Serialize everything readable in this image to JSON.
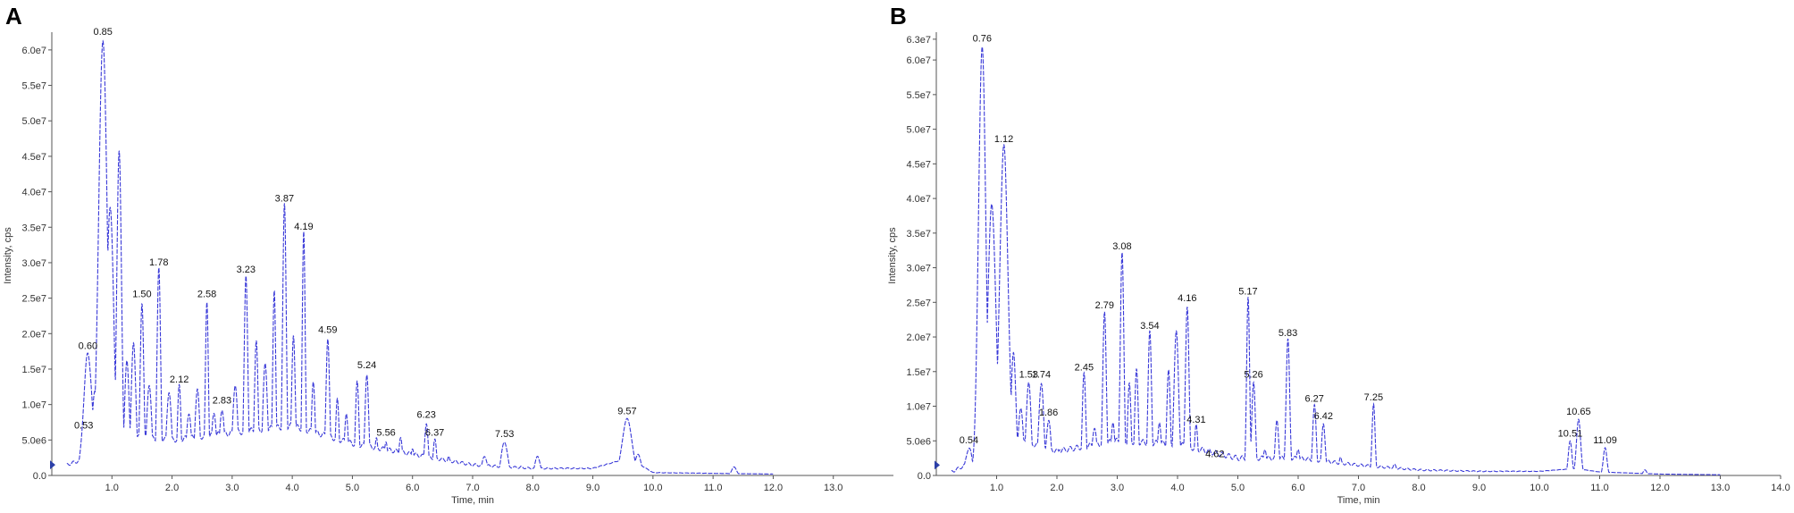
{
  "colors": {
    "trace": "#3a3ad8",
    "axis": "#555555",
    "text": "#111111",
    "marker": "#2b3fa8"
  },
  "chart_data": [
    {
      "type": "line",
      "panel": "A",
      "xlabel": "Time, min",
      "ylabel": "Intensity, cps",
      "xlim": [
        0,
        14.0
      ],
      "ylim": [
        0,
        62000000.0
      ],
      "xticks": [
        1.0,
        2.0,
        3.0,
        4.0,
        5.0,
        6.0,
        7.0,
        8.0,
        9.0,
        10.0,
        11.0,
        12.0,
        13.0
      ],
      "xtick_labels": [
        "1.0",
        "2.0",
        "3.0",
        "4.0",
        "5.0",
        "6.0",
        "7.0",
        "8.0",
        "9.0",
        "10.0",
        "11.0",
        "12.0",
        "13.0"
      ],
      "yticks": [
        0,
        5000000.0,
        10000000.0,
        15000000.0,
        20000000.0,
        25000000.0,
        30000000.0,
        35000000.0,
        40000000.0,
        45000000.0,
        50000000.0,
        55000000.0,
        60000000.0
      ],
      "ytick_labels": [
        "0.0",
        "5.0e6",
        "1.0e7",
        "1.5e7",
        "2.0e7",
        "2.5e7",
        "3.0e7",
        "3.5e7",
        "4.0e7",
        "4.5e7",
        "5.0e7",
        "5.5e7",
        "6.0e7"
      ],
      "baseline": [
        [
          0.25,
          1500000.0
        ],
        [
          0.6,
          2500000.0
        ],
        [
          0.9,
          5000000.0
        ],
        [
          1.4,
          5500000.0
        ],
        [
          2.0,
          5000000.0
        ],
        [
          3.0,
          6000000.0
        ],
        [
          4.0,
          7000000.0
        ],
        [
          5.0,
          4500000.0
        ],
        [
          6.0,
          3000000.0
        ],
        [
          7.0,
          1500000.0
        ],
        [
          8.0,
          1000000.0
        ],
        [
          9.0,
          1000000.0
        ],
        [
          9.6,
          2500000.0
        ],
        [
          10.0,
          400000.0
        ],
        [
          11.0,
          300000.0
        ],
        [
          12.0,
          200000.0
        ]
      ],
      "peaks": [
        [
          0.53,
          6000000.0,
          0.05
        ],
        [
          0.6,
          17200000.0,
          0.07
        ],
        [
          0.72,
          12000000.0,
          0.05
        ],
        [
          0.85,
          61500000.0,
          0.07
        ],
        [
          0.97,
          38000000.0,
          0.06
        ],
        [
          1.12,
          45500000.0,
          0.04
        ],
        [
          1.25,
          16000000.0,
          0.04
        ],
        [
          1.36,
          18500000.0,
          0.04
        ],
        [
          1.5,
          24500000.0,
          0.03
        ],
        [
          1.62,
          13000000.0,
          0.04
        ],
        [
          1.78,
          29000000.0,
          0.03
        ],
        [
          1.95,
          12000000.0,
          0.04
        ],
        [
          2.12,
          12500000.0,
          0.03
        ],
        [
          2.28,
          9000000.0,
          0.04
        ],
        [
          2.42,
          12000000.0,
          0.04
        ],
        [
          2.58,
          24500000.0,
          0.025
        ],
        [
          2.7,
          9000000.0,
          0.04
        ],
        [
          2.83,
          9500000.0,
          0.04
        ],
        [
          3.05,
          13000000.0,
          0.04
        ],
        [
          3.23,
          28000000.0,
          0.03
        ],
        [
          3.4,
          19000000.0,
          0.03
        ],
        [
          3.55,
          15500000.0,
          0.04
        ],
        [
          3.7,
          26500000.0,
          0.025
        ],
        [
          3.87,
          38000000.0,
          0.03
        ],
        [
          4.02,
          20000000.0,
          0.03
        ],
        [
          4.19,
          34000000.0,
          0.025
        ],
        [
          4.35,
          13500000.0,
          0.03
        ],
        [
          4.59,
          19500000.0,
          0.03
        ],
        [
          4.75,
          10500000.0,
          0.03
        ],
        [
          4.9,
          9000000.0,
          0.03
        ],
        [
          5.08,
          13000000.0,
          0.03
        ],
        [
          5.24,
          14500000.0,
          0.03
        ],
        [
          5.4,
          5000000.0,
          0.03
        ],
        [
          5.56,
          5000000.0,
          0.03
        ],
        [
          5.8,
          5500000.0,
          0.03
        ],
        [
          6.0,
          4000000.0,
          0.03
        ],
        [
          6.23,
          7500000.0,
          0.03
        ],
        [
          6.37,
          5000000.0,
          0.03
        ],
        [
          6.6,
          2500000.0,
          0.03
        ],
        [
          6.85,
          1800000.0,
          0.03
        ],
        [
          7.2,
          2800000.0,
          0.04
        ],
        [
          7.53,
          4800000.0,
          0.05
        ],
        [
          7.8,
          1200000.0,
          0.04
        ],
        [
          8.08,
          2800000.0,
          0.04
        ],
        [
          8.5,
          1000000.0,
          0.05
        ],
        [
          9.2,
          1200000.0,
          0.06
        ],
        [
          9.57,
          8000000.0,
          0.08
        ],
        [
          9.75,
          3000000.0,
          0.05
        ],
        [
          11.35,
          1200000.0,
          0.04
        ]
      ],
      "annotations": [
        {
          "label": "0.53",
          "x": 0.53,
          "y": 6000000.0
        },
        {
          "label": "0.60",
          "x": 0.6,
          "y": 17200000.0
        },
        {
          "label": "0.85",
          "x": 0.85,
          "y": 61500000.0
        },
        {
          "label": "1.50",
          "x": 1.5,
          "y": 24500000.0
        },
        {
          "label": "1.78",
          "x": 1.78,
          "y": 29000000.0
        },
        {
          "label": "2.12",
          "x": 2.12,
          "y": 12500000.0
        },
        {
          "label": "2.58",
          "x": 2.58,
          "y": 24500000.0
        },
        {
          "label": "2.83",
          "x": 2.83,
          "y": 9500000.0
        },
        {
          "label": "3.23",
          "x": 3.23,
          "y": 28000000.0
        },
        {
          "label": "3.87",
          "x": 3.87,
          "y": 38000000.0
        },
        {
          "label": "4.19",
          "x": 4.19,
          "y": 34000000.0
        },
        {
          "label": "4.59",
          "x": 4.59,
          "y": 19500000.0
        },
        {
          "label": "5.24",
          "x": 5.24,
          "y": 14500000.0
        },
        {
          "label": "5.56",
          "x": 5.56,
          "y": 5000000.0
        },
        {
          "label": "6.23",
          "x": 6.23,
          "y": 7500000.0
        },
        {
          "label": "6.37",
          "x": 6.37,
          "y": 5000000.0
        },
        {
          "label": "7.53",
          "x": 7.53,
          "y": 4800000.0
        },
        {
          "label": "9.57",
          "x": 9.57,
          "y": 8000000.0
        }
      ]
    },
    {
      "type": "line",
      "panel": "B",
      "xlabel": "Time, min",
      "ylabel": "Intensity, cps",
      "xlim": [
        0,
        14.0
      ],
      "ylim": [
        0,
        63500000.0
      ],
      "xticks": [
        1.0,
        2.0,
        3.0,
        4.0,
        5.0,
        6.0,
        7.0,
        8.0,
        9.0,
        10.0,
        11.0,
        12.0,
        13.0,
        14.0
      ],
      "xtick_labels": [
        "1.0",
        "2.0",
        "3.0",
        "4.0",
        "5.0",
        "6.0",
        "7.0",
        "8.0",
        "9.0",
        "10.0",
        "11.0",
        "12.0",
        "13.0",
        "14.0"
      ],
      "yticks": [
        0,
        5000000.0,
        10000000.0,
        15000000.0,
        20000000.0,
        25000000.0,
        30000000.0,
        35000000.0,
        40000000.0,
        45000000.0,
        50000000.0,
        55000000.0,
        60000000.0,
        63000000.0
      ],
      "ytick_labels": [
        "0.0",
        "5.0e6",
        "1.0e7",
        "1.5e7",
        "2.0e7",
        "2.5e7",
        "3.0e7",
        "3.5e7",
        "4.0e7",
        "4.5e7",
        "5.0e7",
        "5.5e7",
        "6.0e7",
        "6.3e7"
      ],
      "baseline": [
        [
          0.25,
          500000.0
        ],
        [
          0.6,
          2000000.0
        ],
        [
          0.9,
          8000000.0
        ],
        [
          1.4,
          5000000.0
        ],
        [
          2.0,
          3500000.0
        ],
        [
          3.0,
          5000000.0
        ],
        [
          4.0,
          4500000.0
        ],
        [
          5.0,
          2500000.0
        ],
        [
          6.0,
          2500000.0
        ],
        [
          7.0,
          1500000.0
        ],
        [
          8.0,
          800000.0
        ],
        [
          9.0,
          600000.0
        ],
        [
          10.0,
          600000.0
        ],
        [
          10.6,
          1000000.0
        ],
        [
          11.0,
          500000.0
        ],
        [
          12.0,
          200000.0
        ],
        [
          13.0,
          100000.0
        ]
      ],
      "peaks": [
        [
          0.54,
          4000000.0,
          0.05
        ],
        [
          0.76,
          62000000.0,
          0.06
        ],
        [
          0.92,
          39000000.0,
          0.07
        ],
        [
          1.12,
          47500000.0,
          0.07
        ],
        [
          1.28,
          18000000.0,
          0.04
        ],
        [
          1.4,
          10000000.0,
          0.04
        ],
        [
          1.53,
          13500000.0,
          0.04
        ],
        [
          1.74,
          13500000.0,
          0.04
        ],
        [
          1.86,
          8000000.0,
          0.04
        ],
        [
          2.05,
          4000000.0,
          0.04
        ],
        [
          2.3,
          3500000.0,
          0.04
        ],
        [
          2.45,
          14500000.0,
          0.03
        ],
        [
          2.62,
          7000000.0,
          0.04
        ],
        [
          2.79,
          23500000.0,
          0.03
        ],
        [
          2.93,
          8000000.0,
          0.03
        ],
        [
          3.08,
          32000000.0,
          0.03
        ],
        [
          3.2,
          13000000.0,
          0.03
        ],
        [
          3.32,
          15000000.0,
          0.03
        ],
        [
          3.54,
          20500000.0,
          0.03
        ],
        [
          3.7,
          8000000.0,
          0.03
        ],
        [
          3.85,
          15000000.0,
          0.03
        ],
        [
          3.98,
          20500000.0,
          0.04
        ],
        [
          4.16,
          24500000.0,
          0.03
        ],
        [
          4.31,
          7000000.0,
          0.03
        ],
        [
          4.45,
          3000000.0,
          0.03
        ],
        [
          4.62,
          2000000.0,
          0.03
        ],
        [
          4.85,
          2000000.0,
          0.03
        ],
        [
          5.0,
          2500000.0,
          0.03
        ],
        [
          5.17,
          25500000.0,
          0.025
        ],
        [
          5.26,
          13500000.0,
          0.03
        ],
        [
          5.45,
          4000000.0,
          0.03
        ],
        [
          5.65,
          8000000.0,
          0.03
        ],
        [
          5.83,
          19500000.0,
          0.03
        ],
        [
          6.0,
          4000000.0,
          0.03
        ],
        [
          6.27,
          10000000.0,
          0.03
        ],
        [
          6.42,
          7500000.0,
          0.03
        ],
        [
          6.7,
          2500000.0,
          0.03
        ],
        [
          7.25,
          10200000.0,
          0.025
        ],
        [
          7.6,
          1500000.0,
          0.04
        ],
        [
          10.51,
          5000000.0,
          0.03
        ],
        [
          10.65,
          8100000.0,
          0.035
        ],
        [
          11.09,
          4000000.0,
          0.03
        ],
        [
          11.75,
          800000.0,
          0.03
        ]
      ],
      "annotations": [
        {
          "label": "0.54",
          "x": 0.54,
          "y": 4000000.0
        },
        {
          "label": "0.76",
          "x": 0.76,
          "y": 62000000.0
        },
        {
          "label": "1.12",
          "x": 1.12,
          "y": 47500000.0
        },
        {
          "label": "1.53",
          "x": 1.53,
          "y": 13500000.0
        },
        {
          "label": "1.74",
          "x": 1.74,
          "y": 13500000.0
        },
        {
          "label": "1.86",
          "x": 1.86,
          "y": 8000000.0
        },
        {
          "label": "2.45",
          "x": 2.45,
          "y": 14500000.0
        },
        {
          "label": "2.79",
          "x": 2.79,
          "y": 23500000.0
        },
        {
          "label": "3.08",
          "x": 3.08,
          "y": 32000000.0
        },
        {
          "label": "3.54",
          "x": 3.54,
          "y": 20500000.0
        },
        {
          "label": "4.16",
          "x": 4.16,
          "y": 24500000.0
        },
        {
          "label": "4.31",
          "x": 4.31,
          "y": 7000000.0
        },
        {
          "label": "4.62",
          "x": 4.62,
          "y": 2000000.0
        },
        {
          "label": "5.17",
          "x": 5.17,
          "y": 25500000.0
        },
        {
          "label": "5.26",
          "x": 5.26,
          "y": 13500000.0
        },
        {
          "label": "5.83",
          "x": 5.83,
          "y": 19500000.0
        },
        {
          "label": "6.27",
          "x": 6.27,
          "y": 10000000.0
        },
        {
          "label": "6.42",
          "x": 6.42,
          "y": 7500000.0
        },
        {
          "label": "7.25",
          "x": 7.25,
          "y": 10200000.0
        },
        {
          "label": "10.51",
          "x": 10.51,
          "y": 5000000.0
        },
        {
          "label": "10.65",
          "x": 10.65,
          "y": 8100000.0
        },
        {
          "label": "11.09",
          "x": 11.09,
          "y": 4000000.0
        }
      ]
    }
  ]
}
